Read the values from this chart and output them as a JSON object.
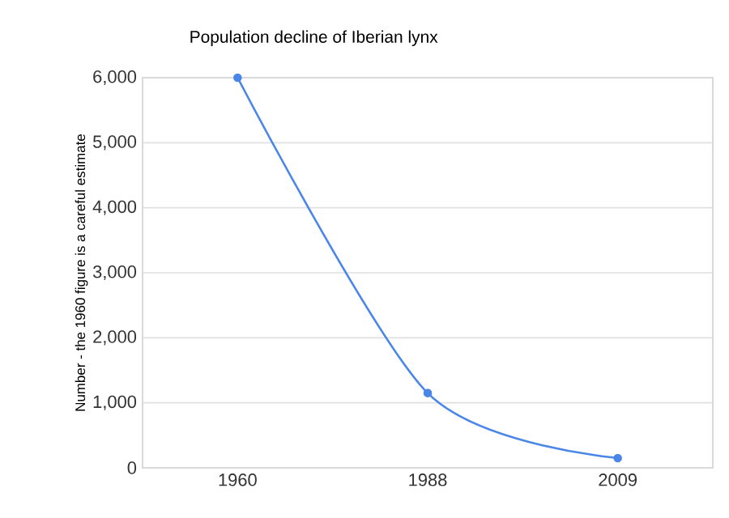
{
  "chart_data": {
    "type": "line",
    "title": "Population decline of Iberian lynx",
    "ylabel": "Number - the 1960 figure is a careful estimate",
    "categories": [
      "1960",
      "1988",
      "2009"
    ],
    "series": [
      {
        "color": "#4a86e8",
        "values": [
          6000,
          1150,
          150
        ]
      }
    ],
    "ylim": [
      0,
      6000
    ],
    "yticks": [
      {
        "value": 0,
        "label": "0"
      },
      {
        "value": 1000,
        "label": "1,000"
      },
      {
        "value": 2000,
        "label": "2,000"
      },
      {
        "value": 3000,
        "label": "3,000"
      },
      {
        "value": 4000,
        "label": "4,000"
      },
      {
        "value": 5000,
        "label": "5,000"
      },
      {
        "value": 6000,
        "label": "6,000"
      }
    ],
    "grid": "y",
    "marker": "circle",
    "line_style": "solid"
  }
}
